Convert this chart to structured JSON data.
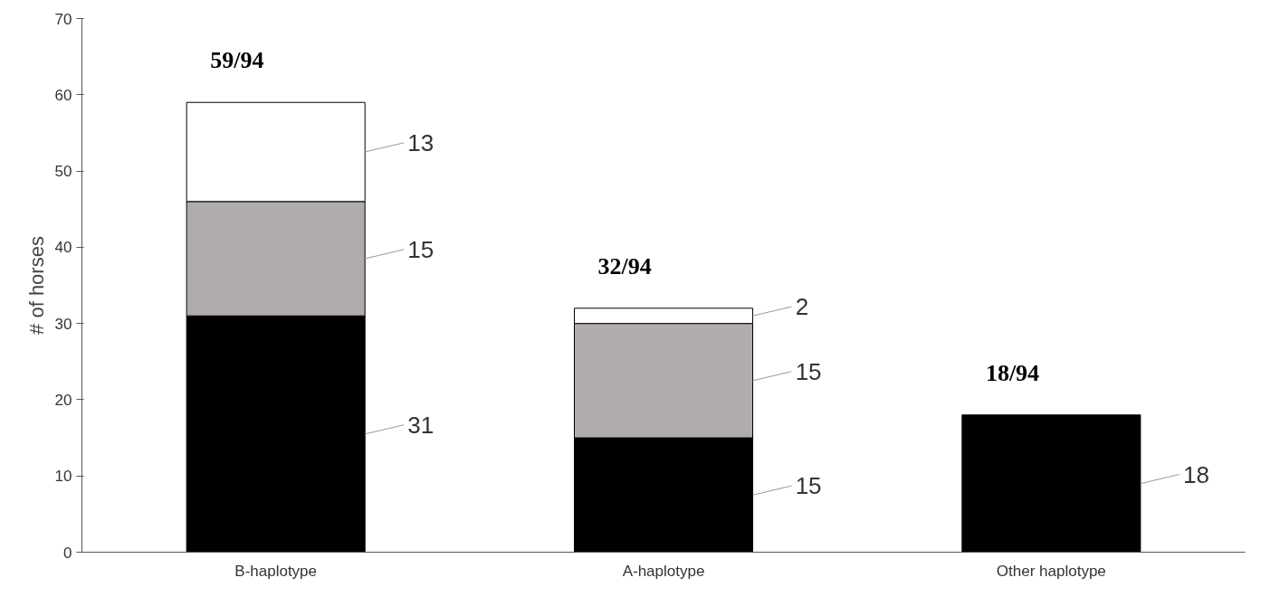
{
  "chart_data": {
    "type": "bar",
    "stacked": true,
    "ylabel": "# of horses",
    "categories": [
      "B-haplotype",
      "A-haplotype",
      "Other haplotype"
    ],
    "series": [
      {
        "color": "#000000",
        "values": [
          31,
          15,
          18
        ]
      },
      {
        "color": "#b0acab",
        "values": [
          15,
          15,
          null
        ]
      },
      {
        "color": "#ffffff",
        "values": [
          13,
          2,
          null
        ]
      }
    ],
    "ylim": [
      0,
      70
    ],
    "yticks": [
      0,
      10,
      20,
      30,
      40,
      50,
      60,
      70
    ],
    "totals": [
      "59/94",
      "32/94",
      "18/94"
    ],
    "data_labels": true,
    "grid": false
  }
}
